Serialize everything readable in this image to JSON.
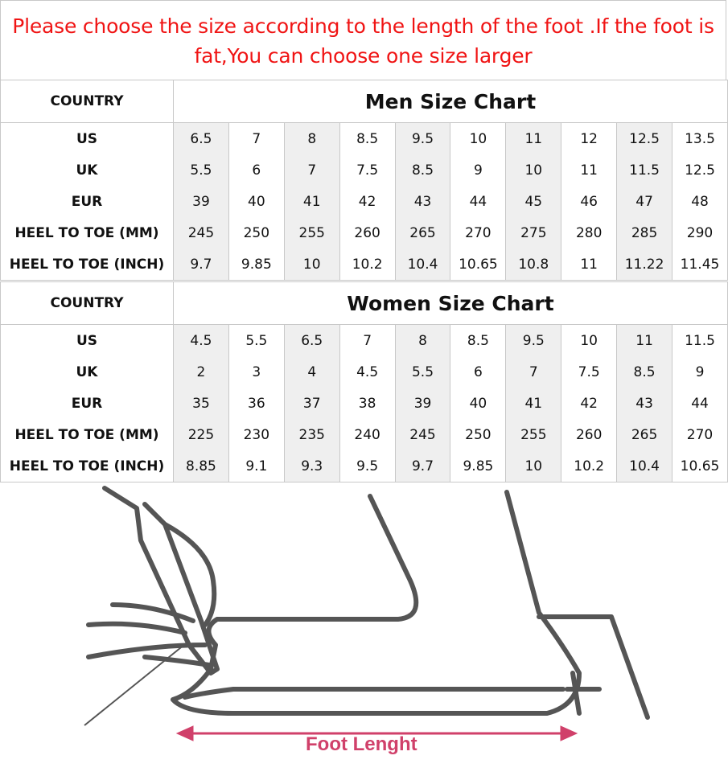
{
  "notice": "Please choose the size according to the length of the foot .If the foot is fat,You can choose one size larger",
  "shade_color": "#efefef",
  "notice_color": "#f01414",
  "men": {
    "country_label": "COUNTRY",
    "title": "Men Size Chart",
    "rows": [
      {
        "label": "US",
        "values": [
          "6.5",
          "7",
          "8",
          "8.5",
          "9.5",
          "10",
          "11",
          "12",
          "12.5",
          "13.5"
        ]
      },
      {
        "label": "UK",
        "values": [
          "5.5",
          "6",
          "7",
          "7.5",
          "8.5",
          "9",
          "10",
          "11",
          "11.5",
          "12.5"
        ]
      },
      {
        "label": "EUR",
        "values": [
          "39",
          "40",
          "41",
          "42",
          "43",
          "44",
          "45",
          "46",
          "47",
          "48"
        ]
      },
      {
        "label": "HEEL TO TOE (MM)",
        "values": [
          "245",
          "250",
          "255",
          "260",
          "265",
          "270",
          "275",
          "280",
          "285",
          "290"
        ]
      },
      {
        "label": "HEEL TO TOE (INCH)",
        "values": [
          "9.7",
          "9.85",
          "10",
          "10.2",
          "10.4",
          "10.65",
          "10.8",
          "11",
          "11.22",
          "11.45"
        ]
      }
    ]
  },
  "women": {
    "country_label": "COUNTRY",
    "title": "Women Size Chart",
    "rows": [
      {
        "label": "US",
        "values": [
          "4.5",
          "5.5",
          "6.5",
          "7",
          "8",
          "8.5",
          "9.5",
          "10",
          "11",
          "11.5"
        ]
      },
      {
        "label": "UK",
        "values": [
          "2",
          "3",
          "4",
          "4.5",
          "5.5",
          "6",
          "7",
          "7.5",
          "8.5",
          "9"
        ]
      },
      {
        "label": "EUR",
        "values": [
          "35",
          "36",
          "37",
          "38",
          "39",
          "40",
          "41",
          "42",
          "43",
          "44"
        ]
      },
      {
        "label": "HEEL TO TOE (MM)",
        "values": [
          "225",
          "230",
          "235",
          "240",
          "245",
          "250",
          "255",
          "260",
          "265",
          "270"
        ]
      },
      {
        "label": "HEEL TO TOE (INCH)",
        "values": [
          "8.85",
          "9.1",
          "9.3",
          "9.5",
          "9.7",
          "9.85",
          "10",
          "10.2",
          "10.4",
          "10.65"
        ]
      }
    ]
  },
  "illustration": {
    "caption": "Foot Lenght",
    "caption_color": "#d0406a"
  }
}
